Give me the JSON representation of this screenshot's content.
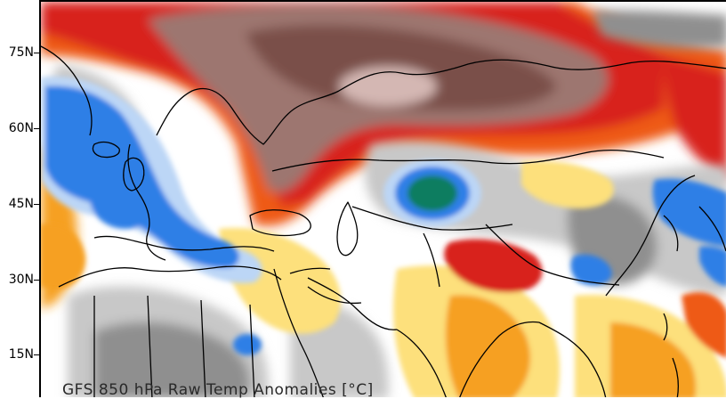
{
  "map": {
    "caption": "GFS 850 hPa Raw Temp Anomalies [°C]",
    "lat_labels": [
      "75N",
      "60N",
      "45N",
      "30N",
      "15N"
    ],
    "colors": {
      "deep_warm": "#7a5048",
      "brown": "#9d7670",
      "pale_pink": "#d4b7b3",
      "red": "#d8221a",
      "orange_red": "#ee5a12",
      "orange": "#f6a020",
      "yellow": "#fde07c",
      "white": "#ffffff",
      "light_gray": "#c8c8c8",
      "gray": "#8f8f8f",
      "light_blue": "#bcd6f6",
      "blue": "#2f7fe6",
      "teal": "#0f7d60",
      "coastline": "#000000"
    }
  }
}
